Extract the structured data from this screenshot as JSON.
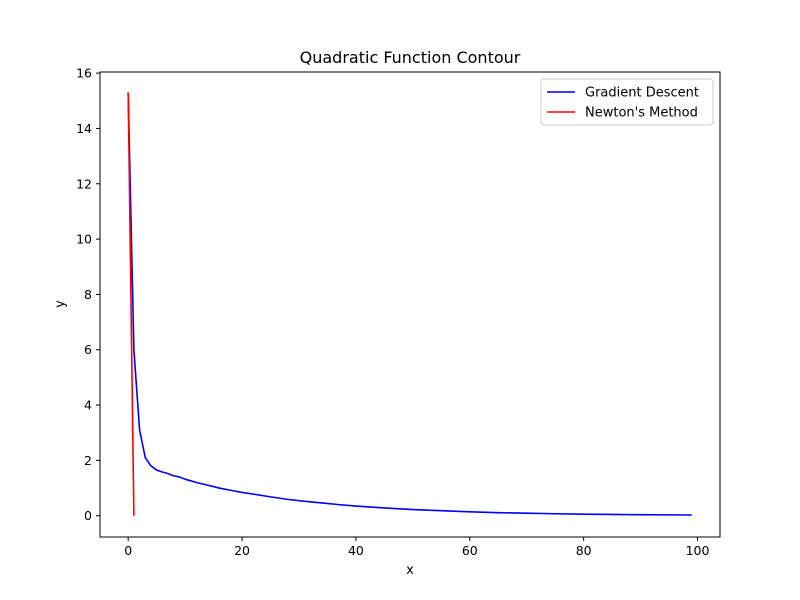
{
  "chart_data": {
    "type": "line",
    "title": "Quadratic Function Contour",
    "xlabel": "x",
    "ylabel": "y",
    "xlim": [
      -4.95,
      103.95
    ],
    "ylim": [
      -0.77,
      16.04
    ],
    "xticks": [
      0,
      20,
      40,
      60,
      80,
      100
    ],
    "yticks": [
      0,
      2,
      4,
      6,
      8,
      10,
      12,
      14,
      16
    ],
    "grid": false,
    "legend": "top-right",
    "series": [
      {
        "name": "Gradient Descent",
        "color": "#0000ff",
        "x": [
          0,
          1,
          2,
          3,
          4,
          5,
          6,
          7,
          8,
          9,
          10,
          12,
          14,
          16,
          18,
          20,
          22,
          25,
          28,
          31,
          34,
          37,
          40,
          45,
          50,
          55,
          60,
          65,
          70,
          75,
          80,
          85,
          90,
          95,
          99
        ],
        "y": [
          15.3,
          6.0,
          3.1,
          2.1,
          1.8,
          1.65,
          1.58,
          1.52,
          1.44,
          1.4,
          1.32,
          1.2,
          1.1,
          1.0,
          0.92,
          0.84,
          0.78,
          0.68,
          0.59,
          0.52,
          0.46,
          0.4,
          0.35,
          0.28,
          0.22,
          0.18,
          0.14,
          0.11,
          0.09,
          0.07,
          0.055,
          0.045,
          0.035,
          0.03,
          0.025
        ]
      },
      {
        "name": "Newton's Method",
        "color": "#ff0000",
        "x": [
          0,
          1
        ],
        "y": [
          15.3,
          0.0
        ]
      }
    ]
  }
}
